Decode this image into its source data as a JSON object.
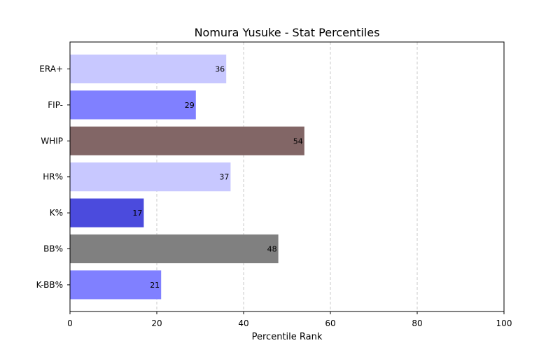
{
  "chart_data": {
    "type": "bar",
    "orientation": "horizontal",
    "title": "Nomura Yusuke - Stat Percentiles",
    "xlabel": "Percentile Rank",
    "ylabel": "",
    "xlim": [
      0,
      100
    ],
    "xticks": [
      0,
      20,
      40,
      60,
      80,
      100
    ],
    "grid": "x-dashed",
    "categories": [
      "ERA+",
      "FIP-",
      "WHIP",
      "HR%",
      "K%",
      "BB%",
      "K-BB%"
    ],
    "values": [
      36,
      29,
      54,
      37,
      17,
      48,
      21
    ],
    "colors": [
      "#c8c8ff",
      "#8080ff",
      "#826666",
      "#c8c8ff",
      "#4b4bdd",
      "#808080",
      "#8080ff"
    ]
  }
}
